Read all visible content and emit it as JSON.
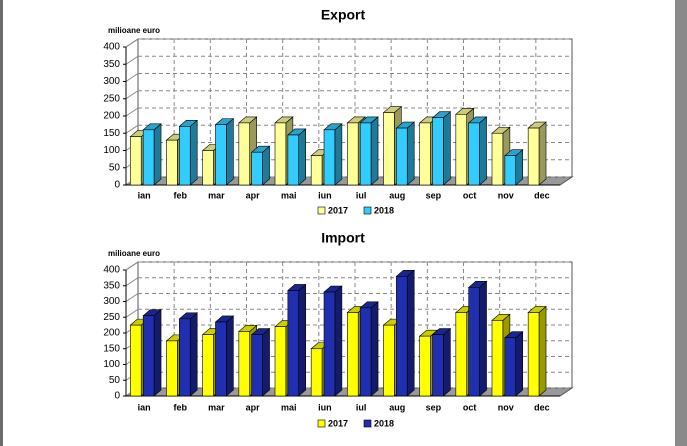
{
  "chart_data": [
    {
      "type": "bar3d",
      "title": "Export",
      "y_label": "milioane euro",
      "categories": [
        "ian",
        "feb",
        "mar",
        "apr",
        "mai",
        "iun",
        "iul",
        "aug",
        "sep",
        "oct",
        "nov",
        "dec"
      ],
      "series": [
        {
          "name": "2017",
          "color": "#ffff99",
          "values": [
            140,
            130,
            100,
            180,
            180,
            85,
            180,
            210,
            180,
            205,
            150,
            165
          ]
        },
        {
          "name": "2018",
          "color": "#33ccff",
          "values": [
            160,
            170,
            175,
            95,
            145,
            160,
            180,
            165,
            195,
            180,
            85,
            null
          ]
        }
      ],
      "ylim": [
        0,
        400
      ],
      "yticks": [
        0,
        50,
        100,
        150,
        200,
        250,
        300,
        350,
        400
      ],
      "grid": true
    },
    {
      "type": "bar3d",
      "title": "Import",
      "y_label": "milioane euro",
      "categories": [
        "ian",
        "feb",
        "mar",
        "apr",
        "mai",
        "iun",
        "iul",
        "aug",
        "sep",
        "oct",
        "nov",
        "dec"
      ],
      "series": [
        {
          "name": "2017",
          "color": "#ffff00",
          "values": [
            225,
            175,
            195,
            205,
            220,
            150,
            265,
            225,
            190,
            265,
            240,
            265
          ]
        },
        {
          "name": "2018",
          "color": "#1f2fb0",
          "values": [
            255,
            245,
            235,
            195,
            335,
            330,
            280,
            380,
            195,
            345,
            185,
            null
          ]
        }
      ],
      "ylim": [
        0,
        400
      ],
      "yticks": [
        0,
        50,
        100,
        150,
        200,
        250,
        300,
        350,
        400
      ],
      "grid": true
    }
  ]
}
